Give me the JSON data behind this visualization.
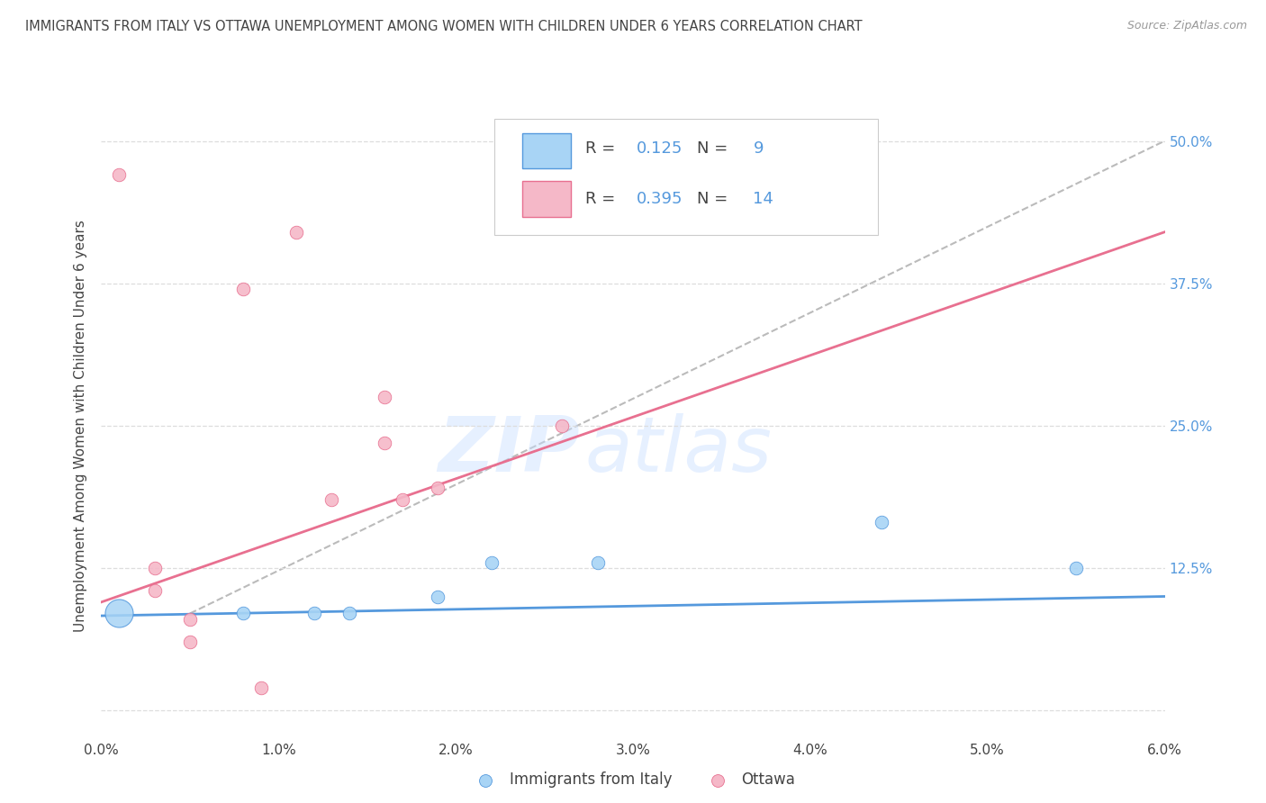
{
  "title": "IMMIGRANTS FROM ITALY VS OTTAWA UNEMPLOYMENT AMONG WOMEN WITH CHILDREN UNDER 6 YEARS CORRELATION CHART",
  "source": "Source: ZipAtlas.com",
  "ylabel": "Unemployment Among Women with Children Under 6 years",
  "xlim": [
    0.0,
    0.06
  ],
  "ylim": [
    -0.025,
    0.525
  ],
  "yticks": [
    0.0,
    0.125,
    0.25,
    0.375,
    0.5
  ],
  "ytick_labels_right": [
    "",
    "12.5%",
    "25.0%",
    "37.5%",
    "50.0%"
  ],
  "xtick_labels": [
    "0.0%",
    "1.0%",
    "2.0%",
    "3.0%",
    "4.0%",
    "5.0%",
    "6.0%"
  ],
  "xticks": [
    0.0,
    0.01,
    0.02,
    0.03,
    0.04,
    0.05,
    0.06
  ],
  "blue_scatter_x": [
    0.001,
    0.012,
    0.014,
    0.008,
    0.022,
    0.019,
    0.028,
    0.044,
    0.055
  ],
  "blue_scatter_y": [
    0.085,
    0.085,
    0.085,
    0.085,
    0.13,
    0.1,
    0.13,
    0.165,
    0.125
  ],
  "blue_special_size": 500,
  "pink_scatter_x": [
    0.003,
    0.003,
    0.005,
    0.005,
    0.009,
    0.013,
    0.016,
    0.016,
    0.017,
    0.019,
    0.026,
    0.008,
    0.011,
    0.001
  ],
  "pink_scatter_y": [
    0.125,
    0.105,
    0.08,
    0.06,
    0.02,
    0.185,
    0.275,
    0.235,
    0.185,
    0.195,
    0.25,
    0.37,
    0.42,
    0.47
  ],
  "blue_line_x": [
    0.0,
    0.06
  ],
  "blue_line_y": [
    0.083,
    0.1
  ],
  "pink_line_x": [
    0.0,
    0.06
  ],
  "pink_line_y": [
    0.095,
    0.42
  ],
  "dashed_line_x": [
    0.005,
    0.06
  ],
  "dashed_line_y": [
    0.085,
    0.5
  ],
  "blue_color": "#A8D4F5",
  "blue_line_color": "#5599DD",
  "pink_color": "#F5B8C8",
  "pink_line_color": "#E87090",
  "dashed_color": "#BBBBBB",
  "legend_R_blue": "0.125",
  "legend_N_blue": "9",
  "legend_R_pink": "0.395",
  "legend_N_pink": "14",
  "watermark_text": "ZIP",
  "watermark_text2": "atlas",
  "background_color": "#ffffff",
  "grid_color": "#DDDDDD",
  "label_color_blue": "#5599DD",
  "label_color_dark": "#444444",
  "source_color": "#999999"
}
